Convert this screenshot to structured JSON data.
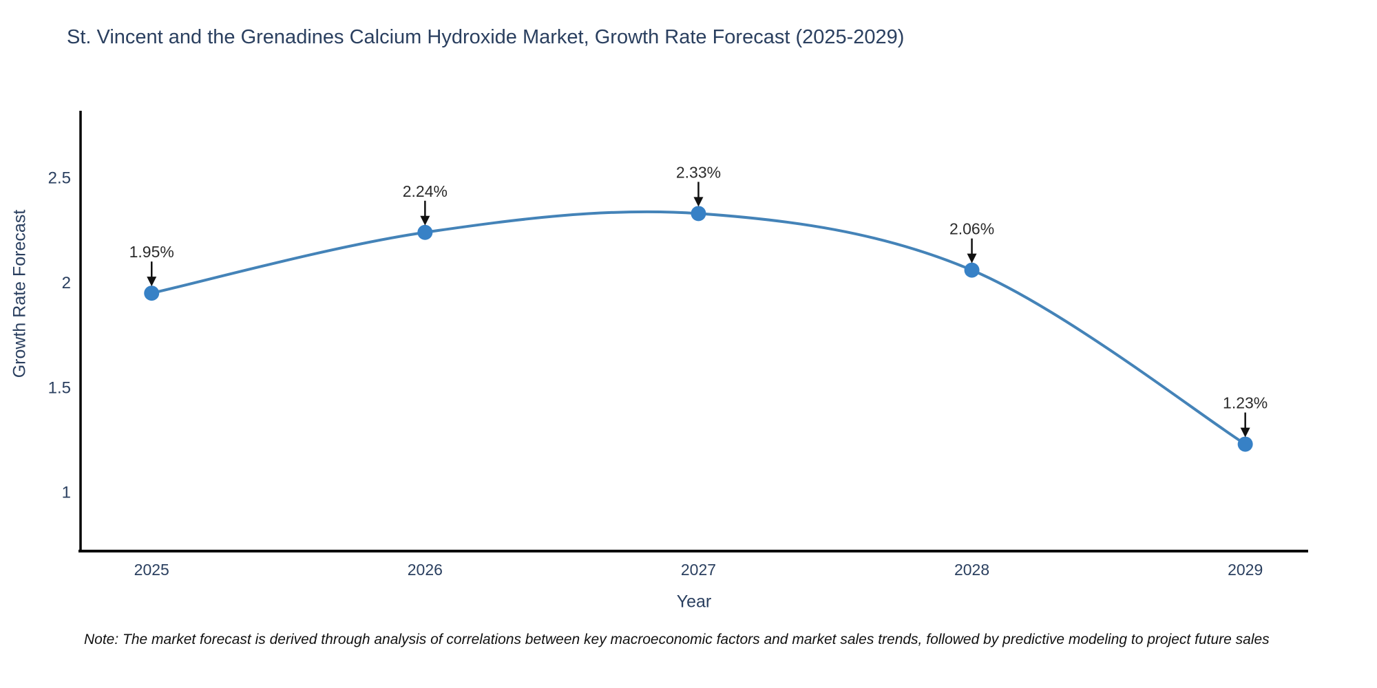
{
  "title": "St. Vincent and the Grenadines Calcium Hydroxide Market, Growth Rate Forecast (2025-2029)",
  "note": "Note: The market forecast is derived through analysis of correlations between key macroeconomic factors and market sales trends, followed by predictive modeling to project future sales",
  "chart_data": {
    "type": "line",
    "title": "St. Vincent and the Grenadines Calcium Hydroxide Market, Growth Rate Forecast (2025-2029)",
    "xlabel": "Year",
    "ylabel": "Growth Rate Forecast",
    "x": [
      2025,
      2026,
      2027,
      2028,
      2029
    ],
    "values": [
      1.95,
      2.24,
      2.33,
      2.06,
      1.23
    ],
    "point_labels": [
      "1.95%",
      "2.24%",
      "2.33%",
      "2.06%",
      "1.23%"
    ],
    "xticklabels": [
      "2025",
      "2026",
      "2027",
      "2028",
      "2029"
    ],
    "yticks": [
      1,
      1.5,
      2,
      2.5
    ],
    "yticklabels": [
      "1",
      "1.5",
      "2",
      "2.5"
    ],
    "xlim": [
      2024.74,
      2029.23
    ],
    "ylim": [
      0.72,
      2.82
    ],
    "line_shape": "spline",
    "grid": false,
    "legend": false,
    "colors": {
      "line": "#4483b8",
      "marker": "#3781c6",
      "axis": "#000000",
      "tick_text": "#2a3f5f",
      "annotation_text": "#2b2b2b",
      "arrow": "#111111"
    }
  }
}
